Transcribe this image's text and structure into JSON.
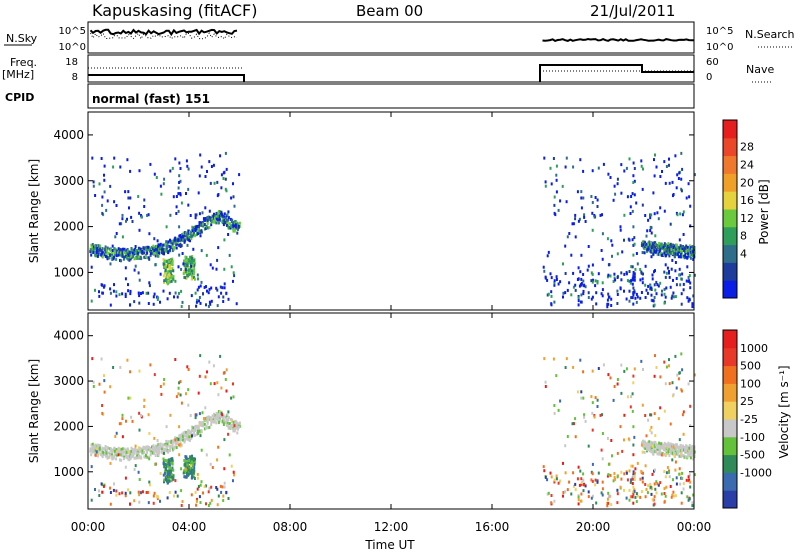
{
  "header": {
    "station": "Kapuskasing (fitACF)",
    "beam": "Beam 00",
    "date": "21/Jul/2011"
  },
  "summary": {
    "nsky_label": "N.Sky",
    "nsky_ticks": [
      "10^5",
      "10^0"
    ],
    "nsearch_label": "N.Search",
    "nsearch_ticks": [
      "10^5",
      "10^0"
    ],
    "freq_label": "Freq.",
    "freq_unit": "[MHz]",
    "freq_ticks": [
      "18",
      "8"
    ],
    "nave_label": "Nave",
    "nave_ticks": [
      "60",
      "0"
    ],
    "cpid_label": "CPID",
    "cpid_value": "normal (fast) 151"
  },
  "chart_data": [
    {
      "type": "heatmap",
      "name": "power",
      "ylabel": "Slant Range [km]",
      "xlabel": "Time UT",
      "xlim": [
        0,
        24
      ],
      "ylim": [
        180,
        4500
      ],
      "xticks": [
        "00:00",
        "04:00",
        "08:00",
        "12:00",
        "16:00",
        "20:00",
        "00:00"
      ],
      "yticks": [
        1000,
        2000,
        3000,
        4000
      ],
      "data_coverage_hours": [
        [
          0,
          6
        ],
        [
          18,
          24
        ]
      ],
      "colorbar": {
        "label": "Power [dB]",
        "ticks": [
          "28",
          "24",
          "20",
          "16",
          "12",
          "8",
          "4"
        ],
        "range": [
          0,
          30
        ],
        "colors": [
          "#0a1ee6",
          "#1e3c9b",
          "#2f6e8a",
          "#2e9e5a",
          "#6ac93c",
          "#e6d23c",
          "#f0a028",
          "#f0782d",
          "#ec4628",
          "#e61e1e"
        ]
      }
    },
    {
      "type": "heatmap",
      "name": "velocity",
      "ylabel": "Slant Range [km]",
      "xlabel": "Time UT",
      "xlim": [
        0,
        24
      ],
      "ylim": [
        180,
        4500
      ],
      "xticks": [
        "00:00",
        "04:00",
        "08:00",
        "12:00",
        "16:00",
        "20:00",
        "00:00"
      ],
      "yticks": [
        1000,
        2000,
        3000,
        4000
      ],
      "colorbar": {
        "label": "Velocity [m s⁻¹]",
        "ticks": [
          "1000",
          "500",
          "100",
          "25",
          "-25",
          "-100",
          "-500",
          "-1000"
        ],
        "colors": [
          "#2a3ea8",
          "#3a6ab0",
          "#2f8a5a",
          "#62c23a",
          "#c8c8c8",
          "#f0d060",
          "#f0a030",
          "#f07020",
          "#e83828",
          "#e61e1e"
        ]
      }
    }
  ]
}
